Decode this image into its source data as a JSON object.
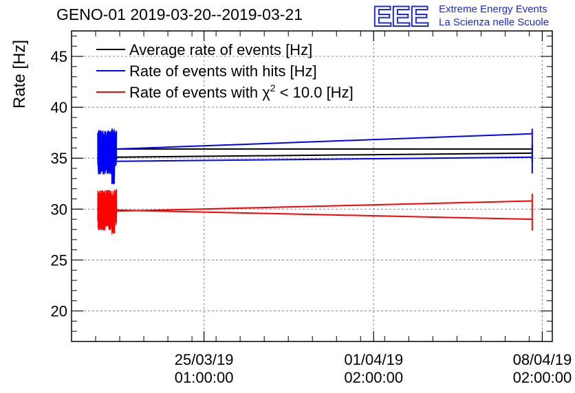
{
  "title": "GENO-01 2019-03-20--2019-03-21",
  "logo": {
    "mark": "EEE",
    "line1": "Extreme Energy Events",
    "line2": "La Scienza nelle Scuole",
    "color": "#1d2bd6"
  },
  "chart_data": {
    "type": "line",
    "ylabel": "Rate [Hz]",
    "xlabel": "",
    "ylim": [
      17,
      47.5
    ],
    "yticks": [
      20,
      25,
      30,
      35,
      40,
      45
    ],
    "xlim": [
      "2019-03-19T13:00",
      "2019-04-08T12:00"
    ],
    "xticks": [
      {
        "at": "2019-03-25T01:00",
        "date": "25/03/19",
        "time": "01:00:00"
      },
      {
        "at": "2019-04-01T02:00",
        "date": "01/04/19",
        "time": "02:00:00"
      },
      {
        "at": "2019-04-08T02:00",
        "date": "08/04/19",
        "time": "02:00:00"
      }
    ],
    "grid": true,
    "legend_position": "top-left",
    "series": [
      {
        "name": "Average rate of events [Hz]",
        "color": "#000000",
        "fluct": [
          {
            "start": "2019-03-20T16:00",
            "end": "2019-03-21T02:00",
            "center": 35.3,
            "amp": 0.5
          },
          {
            "start": "2019-03-21T06:00",
            "end": "2019-03-21T10:00",
            "center": 35.3,
            "amp": 0.5
          }
        ],
        "segments": [
          {
            "from": [
              "2019-03-21T10:00",
              35.9
            ],
            "to": [
              "2019-04-07T16:00",
              35.9
            ]
          },
          {
            "from": [
              "2019-03-21T10:00",
              35.1
            ],
            "to": [
              "2019-04-07T16:00",
              35.5
            ]
          },
          {
            "from": [
              "2019-04-07T16:00",
              34.6
            ],
            "to": [
              "2019-04-07T16:00",
              36.4
            ]
          }
        ]
      },
      {
        "name": "Rate of events with hits [Hz]",
        "color": "#0000ff",
        "fluct": [
          {
            "start": "2019-03-20T15:00",
            "end": "2019-03-21T05:00",
            "center": 35.6,
            "amp": 2.2
          },
          {
            "start": "2019-03-21T05:00",
            "end": "2019-03-21T08:00",
            "center": 35.2,
            "amp": 2.8
          },
          {
            "start": "2019-03-21T08:00",
            "end": "2019-03-21T10:00",
            "center": 36.0,
            "amp": 1.8
          }
        ],
        "segments": [
          {
            "from": [
              "2019-03-21T10:00",
              35.9
            ],
            "to": [
              "2019-04-07T16:00",
              37.4
            ]
          },
          {
            "from": [
              "2019-03-21T10:00",
              34.7
            ],
            "to": [
              "2019-04-07T16:00",
              35.1
            ]
          },
          {
            "from": [
              "2019-04-07T16:00",
              33.5
            ],
            "to": [
              "2019-04-07T16:00",
              37.9
            ]
          }
        ]
      },
      {
        "name": "Rate of events with χ² < 10.0 [Hz]",
        "legend_parts": [
          "Rate of events with χ",
          "2",
          " < 10.0 [Hz]"
        ],
        "color": "#ff0000",
        "fluct": [
          {
            "start": "2019-03-20T15:00",
            "end": "2019-03-21T05:00",
            "center": 29.9,
            "amp": 2.0
          },
          {
            "start": "2019-03-21T05:00",
            "end": "2019-03-21T08:00",
            "center": 29.7,
            "amp": 2.2
          },
          {
            "start": "2019-03-21T08:00",
            "end": "2019-03-21T10:00",
            "center": 30.2,
            "amp": 1.8
          }
        ],
        "segments": [
          {
            "from": [
              "2019-03-21T10:00",
              29.8
            ],
            "to": [
              "2019-04-07T16:00",
              30.8
            ]
          },
          {
            "from": [
              "2019-03-21T10:00",
              29.9
            ],
            "to": [
              "2019-04-07T16:00",
              29.0
            ]
          },
          {
            "from": [
              "2019-04-07T16:00",
              27.9
            ],
            "to": [
              "2019-04-07T16:00",
              31.5
            ]
          }
        ]
      }
    ]
  }
}
